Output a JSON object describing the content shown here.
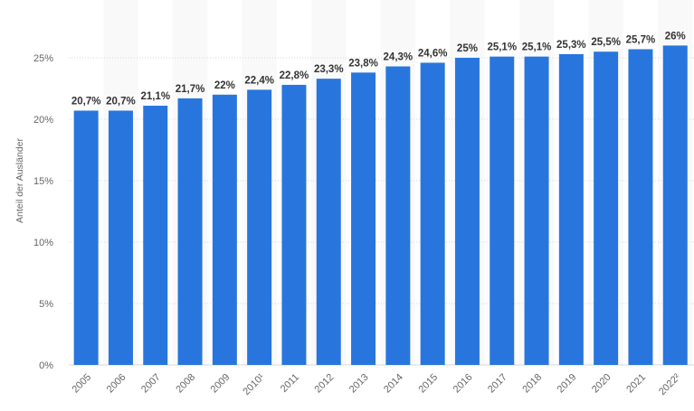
{
  "chart_data": {
    "type": "bar",
    "categories": [
      "2005",
      "2006",
      "2007",
      "2008",
      "2009",
      "2010¹",
      "2011",
      "2012",
      "2013",
      "2014",
      "2015",
      "2016",
      "2017",
      "2018",
      "2019",
      "2020",
      "2021",
      "2022²"
    ],
    "values": [
      20.7,
      20.7,
      21.1,
      21.7,
      22,
      22.4,
      22.8,
      23.3,
      23.8,
      24.3,
      24.6,
      25,
      25.1,
      25.1,
      25.3,
      25.5,
      25.7,
      26
    ],
    "data_labels": [
      "20,7%",
      "20,7%",
      "21,1%",
      "21,7%",
      "22%",
      "22,4%",
      "22,8%",
      "23,3%",
      "23,8%",
      "24,3%",
      "24,6%",
      "25%",
      "25,1%",
      "25,1%",
      "25,3%",
      "25,5%",
      "25,7%",
      "26%"
    ],
    "ylabel": "Anteil der Ausländer",
    "xlabel": "",
    "ylim": [
      0,
      25
    ],
    "y_ticks": [
      {
        "value": 0,
        "label": "0%"
      },
      {
        "value": 5,
        "label": "5%"
      },
      {
        "value": 10,
        "label": "10%"
      },
      {
        "value": 15,
        "label": "15%"
      },
      {
        "value": 20,
        "label": "20%"
      },
      {
        "value": 25,
        "label": "25%"
      }
    ],
    "grid": true,
    "bar_color": "#2876dd",
    "band_color": "#f9f9f9"
  }
}
